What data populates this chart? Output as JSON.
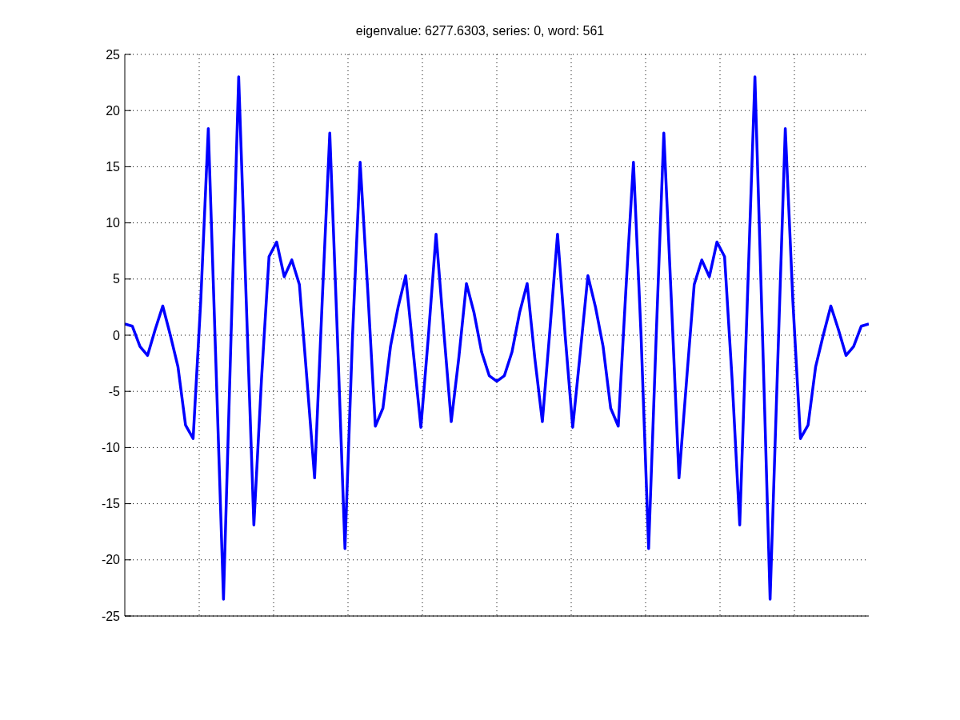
{
  "chart_data": {
    "type": "line",
    "title": "eigenvalue: 6277.6303, series: 0, word: 561",
    "categories": [
      null,
      null,
      null,
      null,
      null,
      null,
      null,
      null,
      null,
      null,
      null,
      null,
      null,
      null,
      null,
      null,
      null,
      null,
      null,
      null,
      null,
      null,
      null,
      null,
      null,
      null,
      null,
      null,
      null,
      null,
      null,
      null,
      null,
      null,
      null,
      null,
      null,
      null,
      null,
      null,
      null,
      null,
      null,
      null,
      null,
      null,
      null,
      null,
      null,
      null,
      null,
      null,
      null,
      null,
      null,
      null,
      null,
      null,
      null,
      null,
      null,
      null,
      null,
      null,
      null,
      null,
      null,
      null,
      null,
      null,
      null,
      null,
      null,
      null,
      null,
      null,
      null,
      null,
      null,
      null,
      null,
      null,
      null,
      null,
      null,
      null,
      null,
      null,
      null,
      null,
      null,
      null,
      null,
      null,
      null,
      null,
      null,
      null,
      null
    ],
    "series": [
      {
        "color": "#0000ff",
        "values": [
          1.0,
          0.8,
          -1.0,
          -1.8,
          0.5,
          2.6,
          0,
          -2.8,
          -8,
          -9.2,
          3,
          18.4,
          -2.5,
          -23.5,
          0,
          23,
          3,
          -16.9,
          -4,
          7,
          8.3,
          5.2,
          6.7,
          4.5,
          -4,
          -12.7,
          3,
          18,
          0,
          -19,
          0,
          15.4,
          4,
          -8.1,
          -6.5,
          -1,
          2.5,
          5.3,
          -1.5,
          -8.2,
          0,
          9,
          0.5,
          -7.7,
          -2,
          4.6,
          2,
          -1.5,
          -3.6,
          -4.1,
          -3.6,
          -1.5,
          2,
          4.6,
          -2,
          -7.7,
          0.5,
          9,
          0,
          -8.2,
          -1.5,
          5.3,
          2.5,
          -1,
          -6.5,
          -8.1,
          4,
          15.4,
          0,
          -19,
          0,
          18,
          3,
          -12.7,
          -4,
          4.5,
          6.7,
          5.2,
          8.3,
          7,
          -4,
          -16.9,
          3,
          23,
          0,
          -23.5,
          -2.5,
          18.4,
          3,
          -9.2,
          -8,
          -2.8,
          0,
          2.6,
          0.5,
          -1.8,
          -1.0,
          0.8,
          1.0
        ]
      }
    ],
    "ylim": [
      -25,
      25
    ],
    "yticks": [
      -25,
      -20,
      -15,
      -10,
      -5,
      0,
      5,
      10,
      15,
      20,
      25
    ],
    "grid": true,
    "line_style": "solid",
    "marker": "none"
  }
}
